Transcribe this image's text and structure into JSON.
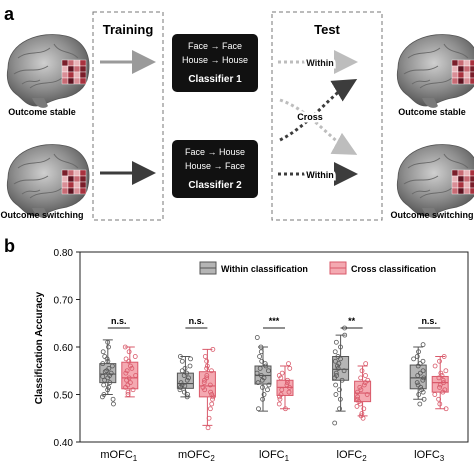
{
  "panel_a": {
    "label": "a",
    "training_heading": "Training",
    "test_heading": "Test",
    "brain_left_top_caption": "Outcome stable",
    "brain_left_bottom_caption": "Outcome switching",
    "brain_right_top_caption": "Outcome stable",
    "brain_right_bottom_caption": "Outcome switching",
    "classifier1": {
      "line1": "Face → Face",
      "line2": "House → House",
      "name": "Classifier 1"
    },
    "classifier2": {
      "line1": "Face → House",
      "line2": "House → Face",
      "name": "Classifier 2"
    },
    "within_top": "Within",
    "within_bottom": "Within",
    "cross": "Cross"
  },
  "panel_b": {
    "label": "b",
    "significance": [
      "n.s.",
      "n.s.",
      "***",
      "**",
      "n.s."
    ]
  },
  "chart_data": {
    "type": "box",
    "ylabel": "Classification Accuracy",
    "ylim": [
      0.4,
      0.8
    ],
    "yticks": [
      "0.40",
      "0.50",
      "0.60",
      "0.70",
      "0.80"
    ],
    "categories": [
      {
        "base": "mOFC",
        "sub": "1"
      },
      {
        "base": "mOFC",
        "sub": "2"
      },
      {
        "base": "lOFC",
        "sub": "1"
      },
      {
        "base": "lOFC",
        "sub": "2"
      },
      {
        "base": "lOFC",
        "sub": "3"
      }
    ],
    "legend_position": "top-right",
    "series": [
      {
        "name": "Within classification",
        "color": "#b5b5b5",
        "boxes": [
          {
            "whislo": 0.5,
            "q1": 0.525,
            "med": 0.543,
            "q3": 0.565,
            "whishi": 0.615
          },
          {
            "whislo": 0.495,
            "q1": 0.513,
            "med": 0.523,
            "q3": 0.545,
            "whishi": 0.58
          },
          {
            "whislo": 0.465,
            "q1": 0.522,
            "med": 0.54,
            "q3": 0.56,
            "whishi": 0.6
          },
          {
            "whislo": 0.465,
            "q1": 0.53,
            "med": 0.553,
            "q3": 0.58,
            "whishi": 0.625
          },
          {
            "whislo": 0.49,
            "q1": 0.512,
            "med": 0.535,
            "q3": 0.562,
            "whishi": 0.6
          }
        ],
        "points": [
          [
            0.61,
            0.6,
            0.59,
            0.58,
            0.575,
            0.57,
            0.565,
            0.56,
            0.555,
            0.55,
            0.548,
            0.545,
            0.54,
            0.538,
            0.535,
            0.53,
            0.525,
            0.52,
            0.515,
            0.51,
            0.5,
            0.495,
            0.49,
            0.48
          ],
          [
            0.58,
            0.575,
            0.57,
            0.56,
            0.555,
            0.55,
            0.545,
            0.54,
            0.535,
            0.53,
            0.525,
            0.52,
            0.518,
            0.515,
            0.51,
            0.505,
            0.5,
            0.495
          ],
          [
            0.62,
            0.6,
            0.59,
            0.58,
            0.57,
            0.565,
            0.56,
            0.555,
            0.55,
            0.545,
            0.54,
            0.535,
            0.53,
            0.525,
            0.52,
            0.515,
            0.51,
            0.5,
            0.49,
            0.47
          ],
          [
            0.64,
            0.625,
            0.61,
            0.6,
            0.59,
            0.58,
            0.575,
            0.57,
            0.565,
            0.56,
            0.555,
            0.55,
            0.545,
            0.54,
            0.535,
            0.53,
            0.52,
            0.51,
            0.5,
            0.49,
            0.47,
            0.44
          ],
          [
            0.605,
            0.59,
            0.58,
            0.575,
            0.57,
            0.565,
            0.56,
            0.55,
            0.545,
            0.54,
            0.535,
            0.53,
            0.525,
            0.52,
            0.515,
            0.51,
            0.505,
            0.5,
            0.49,
            0.48
          ]
        ]
      },
      {
        "name": "Cross classification",
        "color": "#f4a9b1",
        "boxes": [
          {
            "whislo": 0.495,
            "q1": 0.512,
            "med": 0.535,
            "q3": 0.568,
            "whishi": 0.6
          },
          {
            "whislo": 0.435,
            "q1": 0.495,
            "med": 0.518,
            "q3": 0.548,
            "whishi": 0.595
          },
          {
            "whislo": 0.47,
            "q1": 0.498,
            "med": 0.515,
            "q3": 0.53,
            "whishi": 0.56
          },
          {
            "whislo": 0.455,
            "q1": 0.485,
            "med": 0.503,
            "q3": 0.528,
            "whishi": 0.56
          },
          {
            "whislo": 0.47,
            "q1": 0.505,
            "med": 0.525,
            "q3": 0.538,
            "whishi": 0.58
          }
        ],
        "points": [
          [
            0.6,
            0.59,
            0.58,
            0.575,
            0.57,
            0.56,
            0.555,
            0.55,
            0.545,
            0.54,
            0.535,
            0.53,
            0.525,
            0.52,
            0.515,
            0.51,
            0.505,
            0.5
          ],
          [
            0.595,
            0.58,
            0.57,
            0.56,
            0.555,
            0.55,
            0.54,
            0.535,
            0.53,
            0.525,
            0.52,
            0.515,
            0.51,
            0.505,
            0.5,
            0.495,
            0.49,
            0.48,
            0.47,
            0.45,
            0.43
          ],
          [
            0.565,
            0.555,
            0.545,
            0.54,
            0.535,
            0.53,
            0.525,
            0.52,
            0.515,
            0.51,
            0.505,
            0.5,
            0.495,
            0.49,
            0.48,
            0.47
          ],
          [
            0.565,
            0.55,
            0.54,
            0.535,
            0.53,
            0.525,
            0.52,
            0.515,
            0.51,
            0.505,
            0.5,
            0.495,
            0.49,
            0.485,
            0.48,
            0.475,
            0.47,
            0.46,
            0.455,
            0.45
          ],
          [
            0.58,
            0.57,
            0.56,
            0.55,
            0.545,
            0.54,
            0.535,
            0.53,
            0.525,
            0.52,
            0.515,
            0.51,
            0.505,
            0.5,
            0.49,
            0.48,
            0.47
          ]
        ]
      }
    ]
  }
}
